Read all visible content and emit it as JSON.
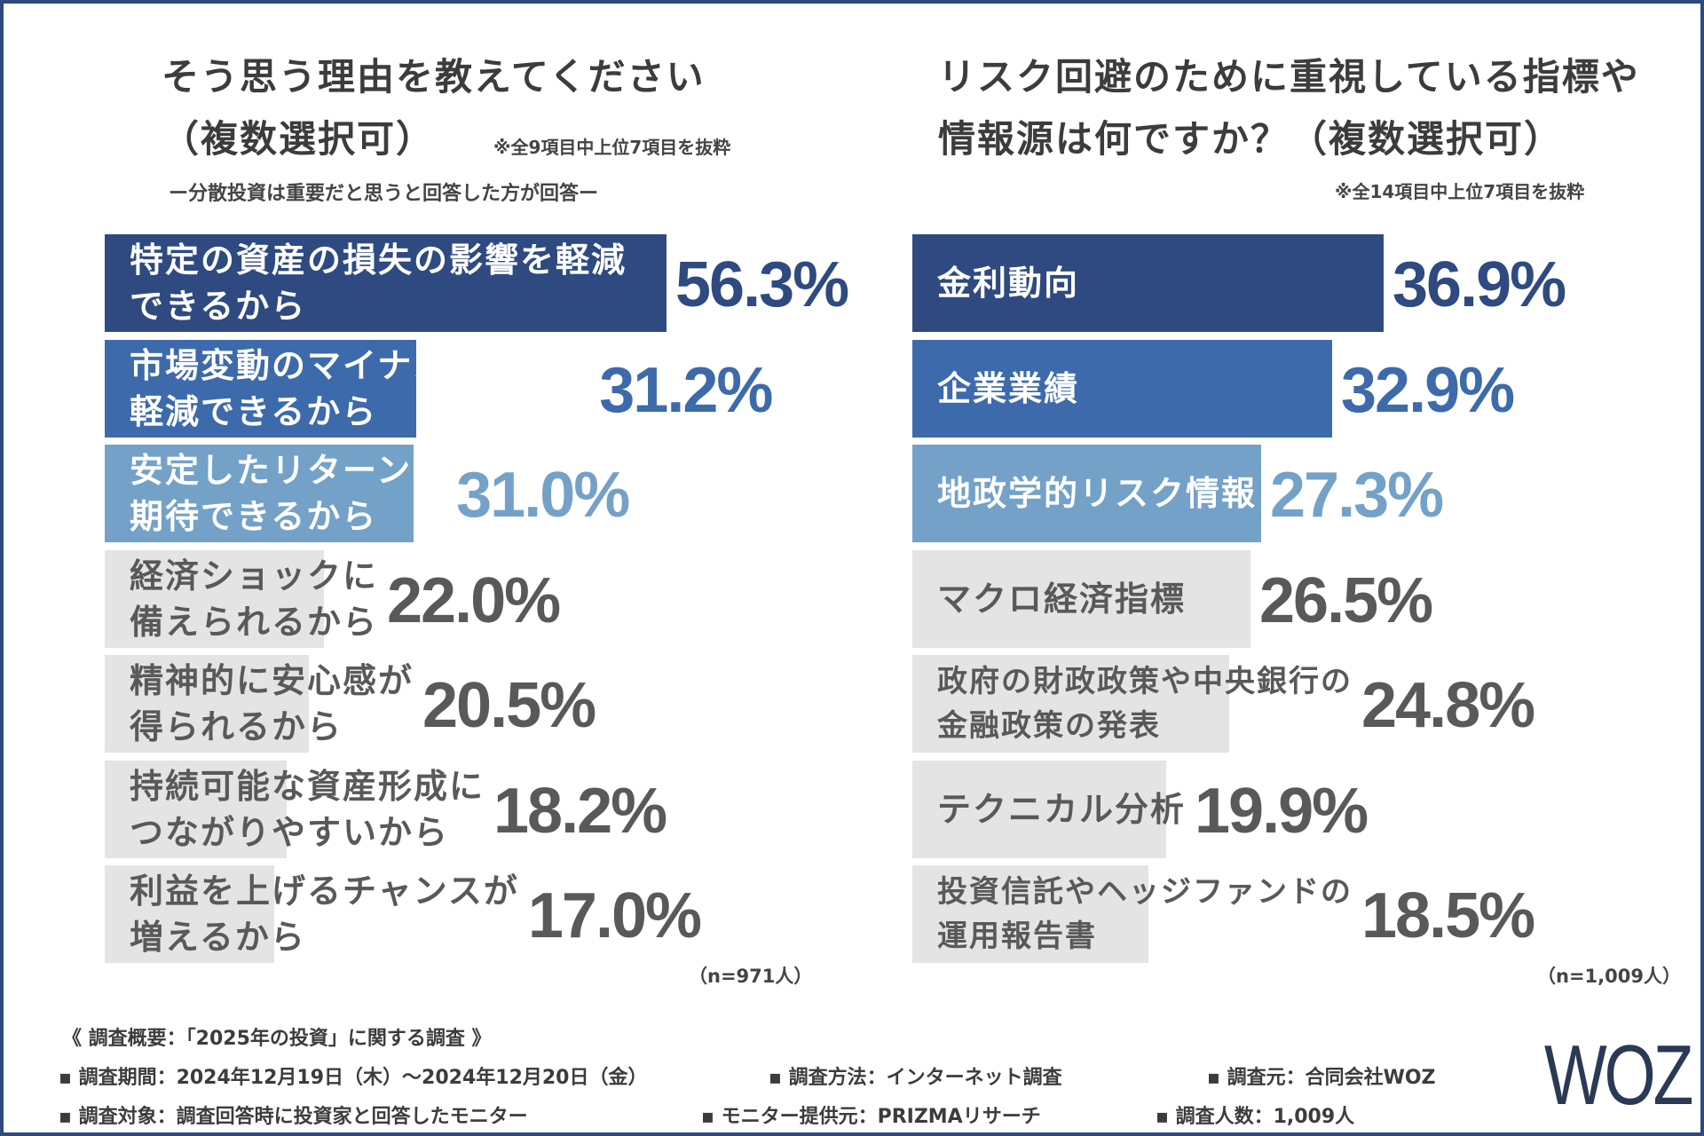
{
  "colors": {
    "border": "#2e4a7f",
    "dark_blue": "#2e4a80",
    "mid_blue": "#3d6aab",
    "light_blue": "#74a1c8",
    "gray_bar": "#e4e4e4",
    "gray_text": "#595959"
  },
  "left": {
    "title_line1": "そう思う理由を教えてください",
    "title_line2": "（複数選択可）",
    "note": "※全9項目中上位7項目を抜粋",
    "subtitle": "ー分散投資は重要だと思うと回答した方が回答ー",
    "n_label": "（n=971人）"
  },
  "right": {
    "title_line1": "リスク回避のために重視している指標や",
    "title_line2": "情報源は何ですか？（複数選択可）",
    "note": "※全14項目中上位7項目を抜粋",
    "n_label": "（n=1,009人）"
  },
  "chart_data": [
    {
      "type": "bar",
      "orientation": "horizontal",
      "title": "そう思う理由を教えてください（複数選択可）",
      "xlim": [
        0,
        100
      ],
      "categories": [
        [
          "特定の資産の損失の影響を軽減",
          "できるから"
        ],
        [
          "市場変動のマイナスの影響を",
          "軽減できるから"
        ],
        [
          "安定したリターンが",
          "期待できるから"
        ],
        [
          "経済ショックに",
          "備えられるから"
        ],
        [
          "精神的に安心感が",
          "得られるから"
        ],
        [
          "持続可能な資産形成に",
          "つながりやすいから"
        ],
        [
          "利益を上げるチャンスが",
          "増えるから"
        ]
      ],
      "values": [
        56.3,
        31.2,
        31.0,
        22.0,
        20.5,
        18.2,
        17.0
      ],
      "value_labels": [
        "56.3%",
        "31.2%",
        "31.0%",
        "22.0%",
        "20.5%",
        "18.2%",
        "17.0%"
      ],
      "highlight": [
        "dark",
        "mid",
        "light",
        "gray",
        "gray",
        "gray",
        "gray"
      ]
    },
    {
      "type": "bar",
      "orientation": "horizontal",
      "title": "リスク回避のために重視している指標や情報源は何ですか？（複数選択可）",
      "xlim": [
        0,
        100
      ],
      "categories": [
        [
          "金利動向"
        ],
        [
          "企業業績"
        ],
        [
          "地政学的リスク情報"
        ],
        [
          "マクロ経済指標"
        ],
        [
          "政府の財政政策や中央銀行の",
          "金融政策の発表"
        ],
        [
          "テクニカル分析"
        ],
        [
          "投資信託やヘッジファンドの",
          "運用報告書"
        ]
      ],
      "values": [
        36.9,
        32.9,
        27.3,
        26.5,
        24.8,
        19.9,
        18.5
      ],
      "value_labels": [
        "36.9%",
        "32.9%",
        "27.3%",
        "26.5%",
        "24.8%",
        "19.9%",
        "18.5%"
      ],
      "highlight": [
        "dark",
        "mid",
        "light",
        "gray",
        "gray",
        "gray",
        "gray"
      ]
    }
  ],
  "footer": {
    "heading": "《 調査概要：「2025年の投資」に関する調査 》",
    "period": "▪ 調査期間：2024年12月19日（木）～2024年12月20日（金）",
    "method": "▪ 調査方法：インターネット調査",
    "source": "▪ 調査元：合同会社WOZ",
    "target": "▪ 調査対象：調査回答時に投資家と回答したモニター",
    "provider": "▪ モニター提供元：PRIZMAリサーチ",
    "count": "▪ 調査人数：1,009人"
  },
  "logo_text": "WOZ"
}
